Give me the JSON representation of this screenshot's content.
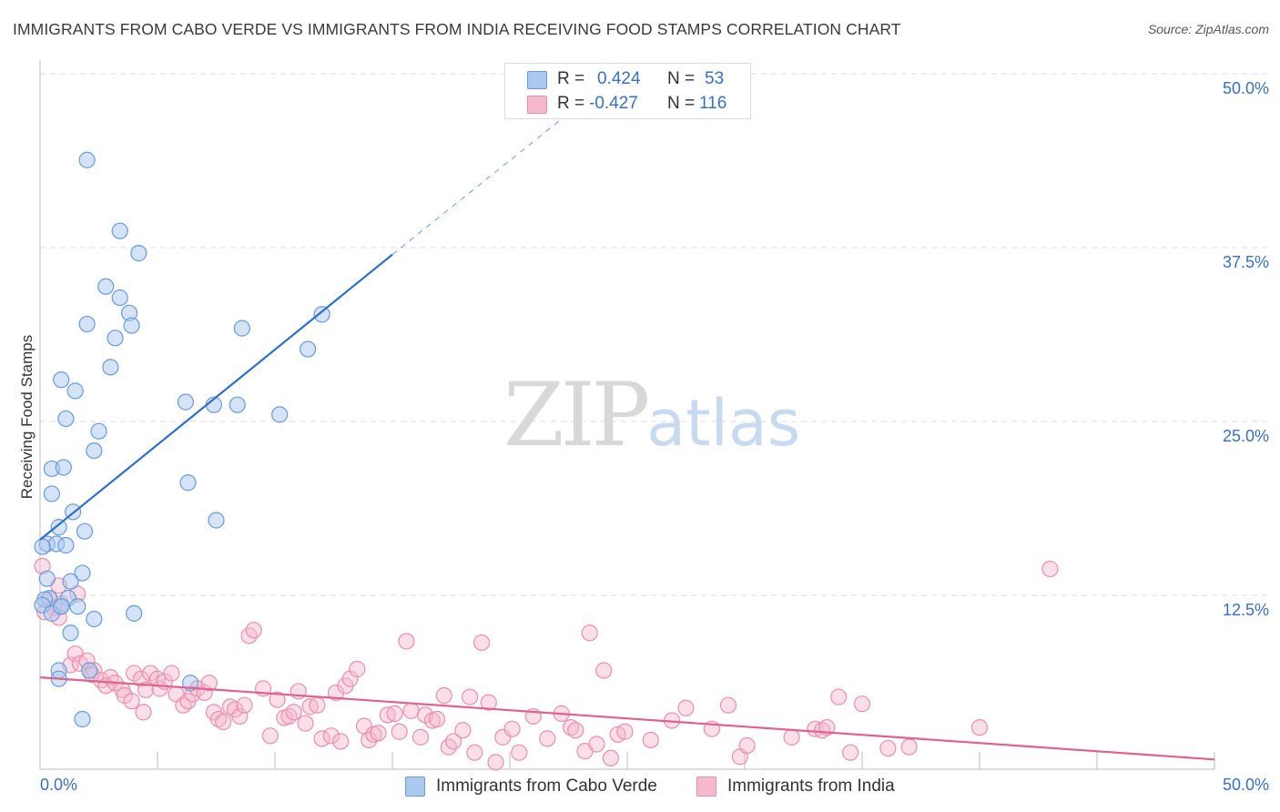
{
  "title": "IMMIGRANTS FROM CABO VERDE VS IMMIGRANTS FROM INDIA RECEIVING FOOD STAMPS CORRELATION CHART",
  "source": "Source: ZipAtlas.com",
  "watermark": {
    "part1": "ZIP",
    "part2": "atlas"
  },
  "legend": {
    "rows": [
      {
        "r_label": "R =",
        "r_value": "0.424",
        "n_label": "N =",
        "n_value": "53"
      },
      {
        "r_label": "R =",
        "r_value": "-0.427",
        "n_label": "N =",
        "n_value": "116"
      }
    ]
  },
  "bottom_legend": {
    "items": [
      {
        "label": "Immigrants from Cabo Verde"
      },
      {
        "label": "Immigrants from India"
      }
    ]
  },
  "colors": {
    "blue_fill": "#aac8f0",
    "blue_stroke": "#6a9bd8",
    "blue_line": "#2f6fca",
    "pink_fill": "#f5b8cc",
    "pink_stroke": "#e98fae",
    "pink_line": "#e0608e",
    "axis_text": "#3a6fc4",
    "grid": "#dddddd"
  },
  "chart_data": {
    "type": "scatter",
    "title": "IMMIGRANTS FROM CABO VERDE VS IMMIGRANTS FROM INDIA RECEIVING FOOD STAMPS CORRELATION CHART",
    "xlabel": "",
    "ylabel": "Receiving Food Stamps",
    "xlim": [
      0,
      50
    ],
    "ylim": [
      0,
      50
    ],
    "x_tick_labels": [
      "0.0%",
      "50.0%"
    ],
    "y_ticks": [
      12.5,
      25.0,
      37.5,
      50.0
    ],
    "y_tick_labels": [
      "12.5%",
      "25.0%",
      "37.5%",
      "50.0%"
    ],
    "grid": true,
    "legend_position": "top-center",
    "series": [
      {
        "name": "Immigrants from Cabo Verde",
        "R": 0.424,
        "N": 53,
        "trend": {
          "x0": 0,
          "y0": 16.5,
          "x1": 15,
          "y1": 37.0,
          "dash_to_x": 23.5,
          "dash_to_y": 48.5
        },
        "points": [
          [
            2.0,
            43.8
          ],
          [
            3.4,
            38.7
          ],
          [
            4.2,
            37.1
          ],
          [
            2.8,
            34.7
          ],
          [
            3.4,
            33.9
          ],
          [
            3.8,
            32.8
          ],
          [
            2.0,
            32.0
          ],
          [
            3.9,
            31.9
          ],
          [
            8.6,
            31.7
          ],
          [
            3.2,
            31.0
          ],
          [
            11.4,
            30.2
          ],
          [
            12.0,
            32.7
          ],
          [
            3.0,
            28.9
          ],
          [
            0.9,
            28.0
          ],
          [
            1.5,
            27.2
          ],
          [
            6.2,
            26.4
          ],
          [
            7.4,
            26.2
          ],
          [
            8.4,
            26.2
          ],
          [
            10.2,
            25.5
          ],
          [
            1.1,
            25.2
          ],
          [
            2.5,
            24.3
          ],
          [
            2.3,
            22.9
          ],
          [
            0.5,
            21.6
          ],
          [
            1.0,
            21.7
          ],
          [
            6.3,
            20.6
          ],
          [
            0.5,
            19.8
          ],
          [
            1.4,
            18.5
          ],
          [
            7.5,
            17.9
          ],
          [
            0.8,
            17.4
          ],
          [
            1.9,
            17.1
          ],
          [
            0.3,
            16.2
          ],
          [
            0.7,
            16.2
          ],
          [
            1.1,
            16.1
          ],
          [
            0.1,
            16.0
          ],
          [
            1.8,
            14.1
          ],
          [
            0.3,
            13.7
          ],
          [
            1.3,
            13.5
          ],
          [
            0.4,
            12.3
          ],
          [
            0.2,
            12.2
          ],
          [
            1.2,
            12.3
          ],
          [
            0.1,
            11.8
          ],
          [
            0.9,
            11.7
          ],
          [
            1.6,
            11.7
          ],
          [
            0.5,
            11.2
          ],
          [
            2.3,
            10.8
          ],
          [
            0.9,
            11.7
          ],
          [
            4.0,
            11.2
          ],
          [
            1.3,
            9.8
          ],
          [
            2.1,
            7.1
          ],
          [
            0.8,
            7.1
          ],
          [
            0.8,
            6.5
          ],
          [
            6.4,
            6.2
          ],
          [
            1.8,
            3.6
          ]
        ]
      },
      {
        "name": "Immigrants from India",
        "R": -0.427,
        "N": 116,
        "trend": {
          "x0": 0,
          "y0": 6.6,
          "x1": 50,
          "y1": 0.7
        },
        "points": [
          [
            0.1,
            14.6
          ],
          [
            0.8,
            13.2
          ],
          [
            1.6,
            12.6
          ],
          [
            0.4,
            12.2
          ],
          [
            0.6,
            11.6
          ],
          [
            0.9,
            11.9
          ],
          [
            0.2,
            11.3
          ],
          [
            0.8,
            10.9
          ],
          [
            1.3,
            7.5
          ],
          [
            1.5,
            8.3
          ],
          [
            1.7,
            7.6
          ],
          [
            2.0,
            7.8
          ],
          [
            2.3,
            7.1
          ],
          [
            2.2,
            6.8
          ],
          [
            2.6,
            6.4
          ],
          [
            3.0,
            6.6
          ],
          [
            2.8,
            6.0
          ],
          [
            3.2,
            6.2
          ],
          [
            3.5,
            5.7
          ],
          [
            3.6,
            5.3
          ],
          [
            3.9,
            4.9
          ],
          [
            4.0,
            6.9
          ],
          [
            4.3,
            6.5
          ],
          [
            4.5,
            5.7
          ],
          [
            4.7,
            6.9
          ],
          [
            4.4,
            4.1
          ],
          [
            5.0,
            6.5
          ],
          [
            5.1,
            5.8
          ],
          [
            5.3,
            6.3
          ],
          [
            5.6,
            6.9
          ],
          [
            5.8,
            5.4
          ],
          [
            6.1,
            4.6
          ],
          [
            6.3,
            4.9
          ],
          [
            6.5,
            5.4
          ],
          [
            6.7,
            5.8
          ],
          [
            7.0,
            5.5
          ],
          [
            7.2,
            6.2
          ],
          [
            7.4,
            4.1
          ],
          [
            7.6,
            3.6
          ],
          [
            7.8,
            3.4
          ],
          [
            8.1,
            4.5
          ],
          [
            8.3,
            4.3
          ],
          [
            8.5,
            3.8
          ],
          [
            8.7,
            4.6
          ],
          [
            8.9,
            9.6
          ],
          [
            9.1,
            10.0
          ],
          [
            9.5,
            5.8
          ],
          [
            9.8,
            2.4
          ],
          [
            10.1,
            5.0
          ],
          [
            10.4,
            3.7
          ],
          [
            10.6,
            3.8
          ],
          [
            10.8,
            4.1
          ],
          [
            11.0,
            5.6
          ],
          [
            11.3,
            3.3
          ],
          [
            11.5,
            4.5
          ],
          [
            11.8,
            4.6
          ],
          [
            12.0,
            2.2
          ],
          [
            12.4,
            2.4
          ],
          [
            12.6,
            5.5
          ],
          [
            12.8,
            2.0
          ],
          [
            13.0,
            6.0
          ],
          [
            13.2,
            6.5
          ],
          [
            13.5,
            7.2
          ],
          [
            13.8,
            3.1
          ],
          [
            14.0,
            2.1
          ],
          [
            14.2,
            2.5
          ],
          [
            14.4,
            2.6
          ],
          [
            14.8,
            3.9
          ],
          [
            15.1,
            4.0
          ],
          [
            15.3,
            2.7
          ],
          [
            15.6,
            9.2
          ],
          [
            15.8,
            4.2
          ],
          [
            16.2,
            2.3
          ],
          [
            16.4,
            3.9
          ],
          [
            16.7,
            3.5
          ],
          [
            16.9,
            3.6
          ],
          [
            17.2,
            5.3
          ],
          [
            17.4,
            1.6
          ],
          [
            17.6,
            2.0
          ],
          [
            18.0,
            2.8
          ],
          [
            18.3,
            5.2
          ],
          [
            18.5,
            1.2
          ],
          [
            18.8,
            9.1
          ],
          [
            19.1,
            4.8
          ],
          [
            19.4,
            0.5
          ],
          [
            19.7,
            2.3
          ],
          [
            20.1,
            2.9
          ],
          [
            20.4,
            1.2
          ],
          [
            21.0,
            3.8
          ],
          [
            21.6,
            2.2
          ],
          [
            22.2,
            4.0
          ],
          [
            22.6,
            3.0
          ],
          [
            22.8,
            2.8
          ],
          [
            23.2,
            1.3
          ],
          [
            23.4,
            9.8
          ],
          [
            23.7,
            1.8
          ],
          [
            24.0,
            7.1
          ],
          [
            24.3,
            0.8
          ],
          [
            24.6,
            2.5
          ],
          [
            24.9,
            2.7
          ],
          [
            26.0,
            2.1
          ],
          [
            26.9,
            3.5
          ],
          [
            27.5,
            4.4
          ],
          [
            28.6,
            2.9
          ],
          [
            29.3,
            4.6
          ],
          [
            29.8,
            0.9
          ],
          [
            30.1,
            1.7
          ],
          [
            32.0,
            2.3
          ],
          [
            33.0,
            2.9
          ],
          [
            33.3,
            2.8
          ],
          [
            33.5,
            3.0
          ],
          [
            34.0,
            5.2
          ],
          [
            35.0,
            4.7
          ],
          [
            36.1,
            1.5
          ],
          [
            37.0,
            1.6
          ],
          [
            40.0,
            3.0
          ],
          [
            43.0,
            14.4
          ],
          [
            34.5,
            1.2
          ]
        ]
      }
    ]
  }
}
